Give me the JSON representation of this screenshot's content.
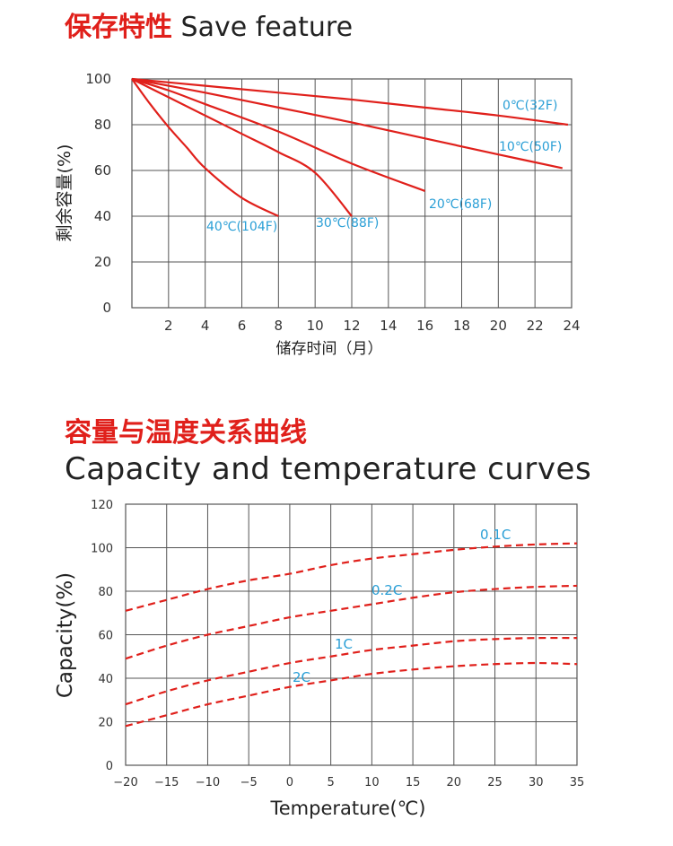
{
  "header1": {
    "title_cn": "保存特性",
    "title_en": "Save feature"
  },
  "header2": {
    "title_cn": "容量与温度关系曲线",
    "title_en": "Capacity and temperature curves"
  },
  "colors": {
    "curve": "#e0201b",
    "label": "#2a9fd6",
    "grid": "#555555",
    "text": "#333333"
  },
  "chart_data": [
    {
      "type": "line",
      "xlabel": "储存时间（月）",
      "ylabel": "剩余容量(%)",
      "xlim": [
        0,
        24
      ],
      "ylim": [
        0,
        100
      ],
      "xticks": [
        "2",
        "4",
        "6",
        "8",
        "10",
        "12",
        "14",
        "16",
        "18",
        "20",
        "22",
        "24"
      ],
      "yticks": [
        "0",
        "20",
        "40",
        "60",
        "80",
        "100"
      ],
      "grid": true,
      "line_style": "solid",
      "series": [
        {
          "name": "0℃(32F)",
          "x": [
            0,
            4,
            8,
            12,
            16,
            20,
            23.8
          ],
          "y": [
            100,
            97,
            94,
            91,
            87.5,
            84,
            80
          ]
        },
        {
          "name": "10℃(50F)",
          "x": [
            0,
            4,
            8,
            12,
            16,
            20,
            23.5
          ],
          "y": [
            100,
            94,
            87.5,
            81,
            74,
            67,
            61
          ]
        },
        {
          "name": "20℃(68F)",
          "x": [
            0,
            2,
            4,
            8,
            12,
            16
          ],
          "y": [
            100,
            95,
            89,
            77,
            63,
            51
          ]
        },
        {
          "name": "30℃(88F)",
          "x": [
            0,
            2,
            4,
            6,
            8,
            10,
            12
          ],
          "y": [
            100,
            92,
            84,
            76,
            68,
            59,
            40
          ]
        },
        {
          "name": "40℃(104F)",
          "x": [
            0,
            1,
            2,
            3,
            4,
            6,
            8
          ],
          "y": [
            100,
            89,
            79,
            70,
            61,
            48,
            40
          ]
        }
      ]
    },
    {
      "type": "line",
      "xlabel": "Temperature(℃)",
      "ylabel": "Capacity(%)",
      "xlim": [
        -20,
        35
      ],
      "ylim": [
        0,
        120
      ],
      "xticks": [
        "−20",
        "−15",
        "−10",
        "−5",
        "0",
        "5",
        "10",
        "15",
        "20",
        "25",
        "30",
        "35"
      ],
      "yticks": [
        "0",
        "20",
        "40",
        "60",
        "80",
        "100",
        "120"
      ],
      "grid": true,
      "line_style": "dashed",
      "series": [
        {
          "name": "0.1C",
          "x": [
            -20,
            -15,
            -10,
            -5,
            0,
            5,
            10,
            15,
            20,
            25,
            30,
            35
          ],
          "y": [
            71,
            76,
            81,
            85,
            88,
            92,
            95,
            97,
            99,
            100.5,
            101.5,
            102
          ]
        },
        {
          "name": "0.2C",
          "x": [
            -20,
            -15,
            -10,
            -5,
            0,
            5,
            10,
            15,
            20,
            25,
            30,
            35
          ],
          "y": [
            49,
            55,
            60,
            64,
            68,
            71,
            74,
            77,
            79.5,
            81,
            82,
            82.5
          ]
        },
        {
          "name": "1C",
          "x": [
            -20,
            -15,
            -10,
            -5,
            0,
            5,
            10,
            15,
            20,
            25,
            30,
            35
          ],
          "y": [
            28,
            34,
            39,
            43,
            47,
            50,
            53,
            55,
            57,
            58,
            58.5,
            58.5
          ]
        },
        {
          "name": "2C",
          "x": [
            -20,
            -15,
            -10,
            -5,
            0,
            5,
            10,
            15,
            20,
            25,
            30,
            35
          ],
          "y": [
            18,
            23,
            28,
            32,
            36,
            39,
            42,
            44,
            45.5,
            46.5,
            47,
            46.5
          ]
        }
      ]
    }
  ]
}
